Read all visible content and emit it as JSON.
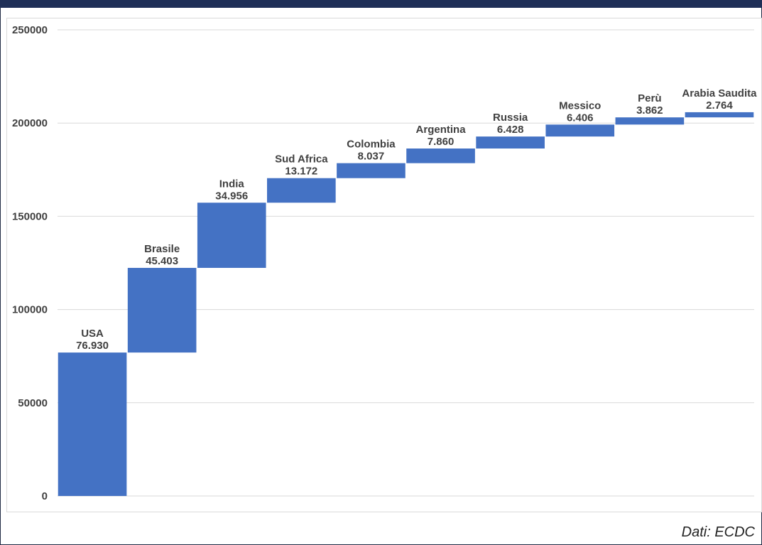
{
  "source_note": "Dati: ECDC",
  "chart_data": {
    "type": "bar",
    "subtype": "waterfall",
    "categories": [
      "USA",
      "Brasile",
      "India",
      "Sud Africa",
      "Colombia",
      "Argentina",
      "Russia",
      "Messico",
      "Perù",
      "Arabia Saudita"
    ],
    "values": [
      76930,
      45403,
      34956,
      13172,
      8037,
      7860,
      6428,
      6406,
      3862,
      2764
    ],
    "value_labels": [
      "76.930",
      "45.403",
      "34.956",
      "13.172",
      "8.037",
      "7.860",
      "6.428",
      "6.406",
      "3.862",
      "2.764"
    ],
    "ylim": [
      0,
      250000
    ],
    "yticks": [
      0,
      50000,
      100000,
      150000,
      200000,
      250000
    ],
    "ytick_labels": [
      "0",
      "50000",
      "100000",
      "150000",
      "200000",
      "250000"
    ],
    "title": "",
    "xlabel": "",
    "ylabel": "",
    "grid": true,
    "bar_color": "#4472c4"
  }
}
